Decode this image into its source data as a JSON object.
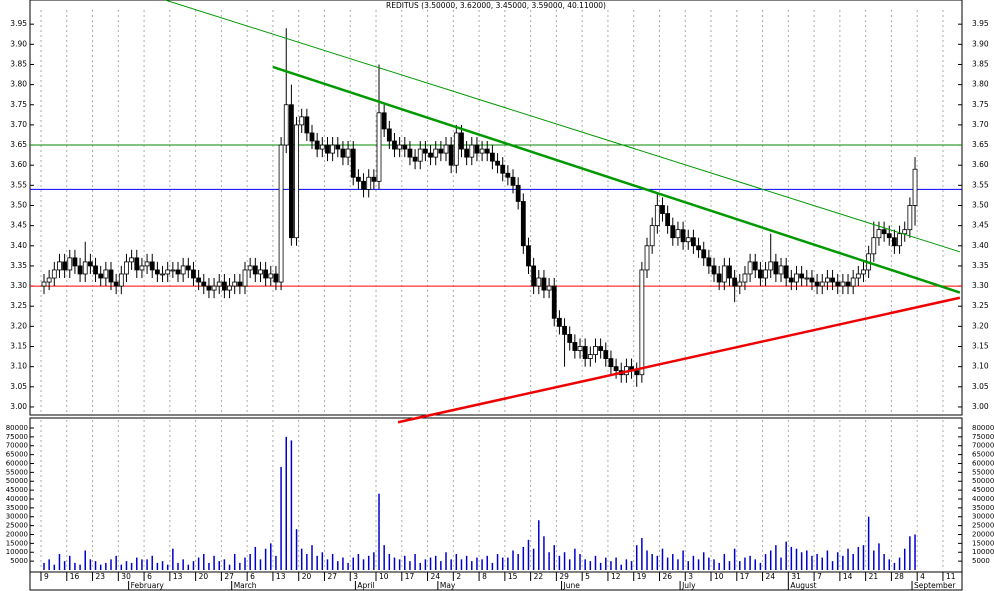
{
  "chart_data": {
    "type": "candlestick",
    "title": "REDITUS (3.50000, 3.62000, 3.45000, 3.59000, 40.11000)",
    "categories": [
      "9",
      null,
      null,
      null,
      null,
      "16",
      null,
      null,
      null,
      null,
      "23",
      null,
      null,
      null,
      null,
      "30",
      null,
      null,
      null,
      null,
      "6",
      null,
      null,
      null,
      null,
      "13",
      null,
      null,
      null,
      null,
      "20",
      null,
      null,
      null,
      null,
      "27",
      null,
      null,
      null,
      null,
      "6",
      null,
      null,
      null,
      null,
      "13",
      null,
      null,
      null,
      null,
      "20",
      null,
      null,
      null,
      null,
      "27",
      null,
      null,
      null,
      null,
      "3",
      null,
      null,
      null,
      null,
      "10",
      null,
      null,
      null,
      null,
      "17",
      null,
      null,
      null,
      null,
      "24",
      null,
      null,
      null,
      null,
      "2",
      null,
      null,
      null,
      null,
      "8",
      null,
      null,
      null,
      null,
      "15",
      null,
      null,
      null,
      null,
      "22",
      null,
      null,
      null,
      null,
      "29",
      null,
      null,
      null,
      null,
      "5",
      null,
      null,
      null,
      null,
      "12",
      null,
      null,
      null,
      null,
      "19",
      null,
      null,
      null,
      null,
      "26",
      null,
      null,
      null,
      null,
      "3",
      null,
      null,
      null,
      null,
      "10",
      null,
      null,
      null,
      null,
      "17",
      null,
      null,
      null,
      null,
      "24",
      null,
      null,
      null,
      null,
      "31",
      null,
      null,
      null,
      null,
      "7",
      null,
      null,
      null,
      null,
      "14",
      null,
      null,
      null,
      null,
      "21",
      null,
      null,
      null,
      null,
      "28",
      null,
      null,
      null,
      null,
      "4",
      null,
      null,
      null,
      null,
      "11",
      null,
      null,
      null,
      null
    ],
    "month_categories": [
      null,
      null,
      null,
      null,
      null,
      null,
      null,
      null,
      null,
      null,
      null,
      null,
      null,
      null,
      null,
      null,
      null,
      "February",
      null,
      null,
      null,
      null,
      null,
      null,
      null,
      null,
      null,
      null,
      null,
      null,
      null,
      null,
      null,
      null,
      null,
      null,
      null,
      "March",
      null,
      null,
      null,
      null,
      null,
      null,
      null,
      null,
      null,
      null,
      null,
      null,
      null,
      null,
      null,
      null,
      null,
      null,
      null,
      null,
      null,
      null,
      null,
      "April",
      null,
      null,
      null,
      null,
      null,
      null,
      null,
      null,
      null,
      null,
      null,
      null,
      null,
      null,
      null,
      "May",
      null,
      null,
      null,
      null,
      null,
      null,
      null,
      null,
      null,
      null,
      null,
      null,
      null,
      null,
      null,
      null,
      null,
      null,
      null,
      null,
      null,
      null,
      null,
      "June",
      null,
      null,
      null,
      null,
      null,
      null,
      null,
      null,
      null,
      null,
      null,
      null,
      null,
      null,
      null,
      null,
      null,
      null,
      null,
      null,
      null,
      null,
      "July",
      null,
      null,
      null,
      null,
      null,
      null,
      null,
      null,
      null,
      null,
      null,
      null,
      null,
      null,
      null,
      null,
      null,
      null,
      null,
      null,
      "August",
      null,
      null,
      null,
      null,
      null,
      null,
      null,
      null,
      null,
      null,
      null,
      null,
      null,
      null,
      null,
      null,
      null,
      null,
      null,
      null,
      null,
      null,
      null,
      "September",
      null,
      null,
      null,
      null,
      null,
      null,
      null,
      null,
      null,
      null
    ],
    "open": [
      3.3,
      3.31,
      3.32,
      3.34,
      3.36,
      3.34,
      3.37,
      3.35,
      3.33,
      3.36,
      3.35,
      3.33,
      3.32,
      3.34,
      3.31,
      3.3,
      3.33,
      3.36,
      3.37,
      3.34,
      3.35,
      3.36,
      3.34,
      3.33,
      3.33,
      3.34,
      3.34,
      3.33,
      3.35,
      3.34,
      3.32,
      3.31,
      3.3,
      3.29,
      3.3,
      3.31,
      3.29,
      3.3,
      3.31,
      3.3,
      3.34,
      3.35,
      3.33,
      3.34,
      3.32,
      3.33,
      3.31,
      3.65,
      3.75,
      3.42,
      3.7,
      3.72,
      3.68,
      3.66,
      3.64,
      3.65,
      3.63,
      3.65,
      3.64,
      3.62,
      3.64,
      3.57,
      3.56,
      3.54,
      3.57,
      3.56,
      3.73,
      3.69,
      3.66,
      3.64,
      3.65,
      3.64,
      3.62,
      3.61,
      3.64,
      3.63,
      3.62,
      3.64,
      3.63,
      3.65,
      3.6,
      3.68,
      3.64,
      3.62,
      3.65,
      3.63,
      3.64,
      3.63,
      3.61,
      3.6,
      3.58,
      3.57,
      3.55,
      3.51,
      3.4,
      3.35,
      3.3,
      3.32,
      3.29,
      3.3,
      3.22,
      3.2,
      3.18,
      3.16,
      3.14,
      3.15,
      3.12,
      3.13,
      3.15,
      3.14,
      3.12,
      3.1,
      3.09,
      3.08,
      3.1,
      3.09,
      3.08,
      3.34,
      3.4,
      3.45,
      3.5,
      3.48,
      3.45,
      3.42,
      3.44,
      3.41,
      3.42,
      3.4,
      3.39,
      3.37,
      3.35,
      3.33,
      3.31,
      3.35,
      3.32,
      3.3,
      3.31,
      3.33,
      3.36,
      3.34,
      3.32,
      3.34,
      3.36,
      3.33,
      3.35,
      3.32,
      3.31,
      3.33,
      3.32,
      3.32,
      3.31,
      3.3,
      3.31,
      3.32,
      3.31,
      3.3,
      3.31,
      3.3,
      3.32,
      3.33,
      3.34,
      3.38,
      3.42,
      3.44,
      3.43,
      3.42,
      3.4,
      3.43,
      3.44,
      3.5,
      null,
      null,
      null,
      null,
      null,
      null,
      null,
      null,
      null,
      null
    ],
    "high": [
      3.33,
      3.34,
      3.36,
      3.38,
      3.38,
      3.39,
      3.39,
      3.37,
      3.41,
      3.38,
      3.37,
      3.35,
      3.36,
      3.36,
      3.33,
      3.35,
      3.38,
      3.39,
      3.39,
      3.37,
      3.38,
      3.38,
      3.36,
      3.35,
      3.36,
      3.36,
      3.36,
      3.37,
      3.37,
      3.36,
      3.34,
      3.33,
      3.32,
      3.32,
      3.33,
      3.33,
      3.32,
      3.33,
      3.33,
      3.36,
      3.37,
      3.37,
      3.36,
      3.36,
      3.35,
      3.35,
      3.67,
      3.94,
      3.8,
      3.72,
      3.74,
      3.74,
      3.7,
      3.68,
      3.67,
      3.67,
      3.67,
      3.67,
      3.66,
      3.66,
      3.66,
      3.59,
      3.58,
      3.59,
      3.59,
      3.85,
      3.75,
      3.71,
      3.68,
      3.67,
      3.67,
      3.66,
      3.64,
      3.66,
      3.66,
      3.65,
      3.66,
      3.66,
      3.67,
      3.67,
      3.7,
      3.7,
      3.66,
      3.67,
      3.67,
      3.66,
      3.66,
      3.65,
      3.63,
      3.62,
      3.6,
      3.59,
      3.57,
      3.53,
      3.42,
      3.37,
      3.34,
      3.34,
      3.32,
      3.32,
      3.24,
      3.22,
      3.2,
      3.18,
      3.17,
      3.17,
      3.15,
      3.17,
      3.17,
      3.16,
      3.14,
      3.12,
      3.11,
      3.12,
      3.12,
      3.11,
      3.36,
      3.42,
      3.47,
      3.53,
      3.52,
      3.5,
      3.47,
      3.46,
      3.46,
      3.44,
      3.44,
      3.42,
      3.41,
      3.39,
      3.37,
      3.35,
      3.37,
      3.37,
      3.34,
      3.33,
      3.35,
      3.38,
      3.38,
      3.36,
      3.36,
      3.43,
      3.38,
      3.37,
      3.37,
      3.34,
      3.35,
      3.35,
      3.34,
      3.34,
      3.33,
      3.33,
      3.34,
      3.34,
      3.33,
      3.33,
      3.33,
      3.34,
      3.35,
      3.36,
      3.4,
      3.46,
      3.46,
      3.46,
      3.45,
      3.44,
      3.45,
      3.46,
      3.52,
      3.62,
      null,
      null,
      null,
      null,
      null,
      null,
      null,
      null,
      null,
      null
    ],
    "low": [
      3.28,
      3.29,
      3.3,
      3.32,
      3.32,
      3.32,
      3.33,
      3.31,
      3.31,
      3.33,
      3.31,
      3.3,
      3.3,
      3.29,
      3.28,
      3.28,
      3.31,
      3.34,
      3.32,
      3.32,
      3.33,
      3.32,
      3.31,
      3.31,
      3.31,
      3.32,
      3.31,
      3.31,
      3.32,
      3.3,
      3.29,
      3.28,
      3.27,
      3.27,
      3.28,
      3.27,
      3.27,
      3.28,
      3.28,
      3.28,
      3.32,
      3.31,
      3.31,
      3.3,
      3.3,
      3.29,
      3.29,
      3.63,
      3.4,
      3.4,
      3.68,
      3.66,
      3.64,
      3.62,
      3.62,
      3.61,
      3.61,
      3.62,
      3.6,
      3.6,
      3.55,
      3.54,
      3.52,
      3.52,
      3.54,
      3.54,
      3.67,
      3.64,
      3.62,
      3.62,
      3.62,
      3.6,
      3.59,
      3.59,
      3.61,
      3.6,
      3.6,
      3.61,
      3.61,
      3.58,
      3.58,
      3.62,
      3.6,
      3.6,
      3.61,
      3.61,
      3.61,
      3.59,
      3.58,
      3.56,
      3.55,
      3.53,
      3.49,
      3.38,
      3.33,
      3.28,
      3.28,
      3.27,
      3.27,
      3.2,
      3.18,
      3.1,
      3.14,
      3.12,
      3.12,
      3.1,
      3.1,
      3.11,
      3.12,
      3.1,
      3.08,
      3.07,
      3.06,
      3.06,
      3.07,
      3.05,
      3.06,
      3.32,
      3.38,
      3.43,
      3.46,
      3.43,
      3.4,
      3.4,
      3.39,
      3.39,
      3.38,
      3.37,
      3.35,
      3.33,
      3.31,
      3.29,
      3.29,
      3.3,
      3.26,
      3.28,
      3.29,
      3.31,
      3.32,
      3.3,
      3.3,
      3.32,
      3.31,
      3.31,
      3.3,
      3.29,
      3.29,
      3.3,
      3.3,
      3.29,
      3.28,
      3.28,
      3.29,
      3.29,
      3.28,
      3.28,
      3.28,
      3.28,
      3.3,
      3.31,
      3.32,
      3.36,
      3.4,
      3.41,
      3.4,
      3.38,
      3.38,
      3.41,
      3.42,
      3.45,
      null,
      null,
      null,
      null,
      null,
      null,
      null,
      null,
      null,
      null
    ],
    "close": [
      3.31,
      3.32,
      3.34,
      3.36,
      3.34,
      3.37,
      3.35,
      3.33,
      3.36,
      3.35,
      3.33,
      3.32,
      3.34,
      3.31,
      3.3,
      3.33,
      3.36,
      3.37,
      3.34,
      3.35,
      3.36,
      3.34,
      3.33,
      3.33,
      3.34,
      3.34,
      3.33,
      3.35,
      3.34,
      3.32,
      3.31,
      3.3,
      3.29,
      3.3,
      3.31,
      3.29,
      3.3,
      3.31,
      3.3,
      3.34,
      3.35,
      3.33,
      3.34,
      3.32,
      3.33,
      3.31,
      3.65,
      3.75,
      3.42,
      3.7,
      3.72,
      3.68,
      3.66,
      3.64,
      3.65,
      3.63,
      3.65,
      3.64,
      3.62,
      3.64,
      3.57,
      3.56,
      3.54,
      3.57,
      3.56,
      3.73,
      3.69,
      3.66,
      3.64,
      3.65,
      3.64,
      3.62,
      3.61,
      3.64,
      3.63,
      3.62,
      3.64,
      3.63,
      3.65,
      3.6,
      3.68,
      3.64,
      3.62,
      3.65,
      3.63,
      3.64,
      3.63,
      3.61,
      3.6,
      3.58,
      3.57,
      3.55,
      3.51,
      3.4,
      3.35,
      3.3,
      3.32,
      3.29,
      3.3,
      3.22,
      3.2,
      3.18,
      3.16,
      3.14,
      3.15,
      3.12,
      3.13,
      3.15,
      3.14,
      3.12,
      3.1,
      3.09,
      3.08,
      3.1,
      3.09,
      3.08,
      3.34,
      3.4,
      3.45,
      3.5,
      3.48,
      3.45,
      3.42,
      3.44,
      3.41,
      3.42,
      3.4,
      3.39,
      3.37,
      3.35,
      3.33,
      3.31,
      3.35,
      3.32,
      3.3,
      3.31,
      3.33,
      3.36,
      3.34,
      3.32,
      3.34,
      3.36,
      3.33,
      3.35,
      3.32,
      3.31,
      3.33,
      3.32,
      3.32,
      3.31,
      3.3,
      3.31,
      3.32,
      3.31,
      3.3,
      3.31,
      3.3,
      3.32,
      3.33,
      3.34,
      3.38,
      3.42,
      3.44,
      3.43,
      3.42,
      3.4,
      3.43,
      3.44,
      3.5,
      3.59,
      null,
      null,
      null,
      null,
      null,
      null,
      null,
      null,
      null,
      null
    ],
    "volume": [
      4000,
      6000,
      3000,
      9000,
      5000,
      8000,
      4000,
      3000,
      11000,
      6000,
      5000,
      3000,
      4000,
      6000,
      8000,
      3000,
      5000,
      4000,
      7000,
      6000,
      6000,
      8000,
      4000,
      5000,
      3000,
      12000,
      4000,
      6000,
      3000,
      5000,
      7000,
      9000,
      4000,
      8000,
      5000,
      6000,
      3000,
      9000,
      4000,
      7000,
      9000,
      13000,
      6000,
      12000,
      15000,
      8000,
      58000,
      75000,
      73000,
      23000,
      12000,
      9000,
      14000,
      8000,
      10000,
      6000,
      9000,
      5000,
      7000,
      4000,
      7000,
      9000,
      6000,
      8000,
      10000,
      43000,
      14000,
      9000,
      7000,
      6000,
      8000,
      5000,
      9000,
      4000,
      6000,
      7000,
      8000,
      5000,
      10000,
      6000,
      9000,
      6000,
      8000,
      5000,
      7000,
      6000,
      8000,
      4000,
      9000,
      7000,
      7000,
      11000,
      9000,
      13000,
      17000,
      12000,
      28000,
      19000,
      10000,
      14000,
      8000,
      10000,
      6000,
      12000,
      9000,
      6000,
      5000,
      8000,
      4000,
      7000,
      5000,
      7000,
      3000,
      6000,
      5000,
      14000,
      18000,
      11000,
      9000,
      8000,
      12000,
      7000,
      9000,
      6000,
      11000,
      5000,
      8000,
      6000,
      10000,
      7000,
      6000,
      4000,
      9000,
      5000,
      12000,
      5000,
      7000,
      8000,
      6000,
      4000,
      9000,
      11000,
      14000,
      7000,
      16000,
      13000,
      12000,
      10000,
      11000,
      8000,
      9000,
      7000,
      11000,
      5000,
      10000,
      8000,
      12000,
      9000,
      13000,
      14000,
      30000,
      11000,
      15000,
      9000,
      6000,
      4000,
      7000,
      12000,
      19000,
      20000,
      null,
      null,
      null,
      null,
      null,
      null,
      null,
      null,
      null,
      null
    ],
    "up_color": "#ffffff",
    "down_color": "#000000",
    "volume_color": "#0000cc",
    "grid_x": true,
    "ylim": [
      2.98,
      4.01
    ],
    "yticks": [
      {
        "value": 3,
        "label": "3.00"
      },
      3.05,
      {
        "value": 3.1,
        "label": "3.10"
      },
      3.15,
      {
        "value": 3.2,
        "label": "3.20"
      },
      3.25,
      {
        "value": 3.3,
        "label": "3.30"
      },
      3.35,
      {
        "value": 3.4,
        "label": "3.40"
      },
      3.45,
      {
        "value": 3.5,
        "label": "3.50"
      },
      3.55,
      {
        "value": 3.6,
        "label": "3.60"
      },
      3.65,
      {
        "value": 3.7,
        "label": "3.70"
      },
      3.75,
      {
        "value": 3.8,
        "label": "3.80"
      },
      3.85,
      {
        "value": 3.9,
        "label": "3.90"
      },
      3.95
    ],
    "volume_lim": [
      0,
      84500
    ],
    "volume_ticks": [
      5000,
      10000,
      15000,
      20000,
      25000,
      30000,
      35000,
      40000,
      45000,
      50000,
      55000,
      60000,
      65000,
      70000,
      75000,
      80000
    ],
    "hlines": [
      {
        "value": 3.65,
        "color": "#008800"
      },
      {
        "value": 3.54,
        "color": "#0000ff"
      },
      {
        "value": 3.3,
        "color": "#ff0000"
      }
    ],
    "trendlines": [
      {
        "color": "#009900",
        "width": 1,
        "x": [
          23.5,
          177.7
        ],
        "y": [
          4.01,
          3.385
        ]
      },
      {
        "color": "#009900",
        "width": 2.5,
        "x": [
          44.4,
          177.7
        ],
        "y": [
          3.844,
          3.284
        ]
      },
      {
        "color": "#ee0000",
        "width": 2.5,
        "x": [
          68.7,
          177.7
        ],
        "y": [
          2.962,
          3.271
        ]
      }
    ]
  }
}
